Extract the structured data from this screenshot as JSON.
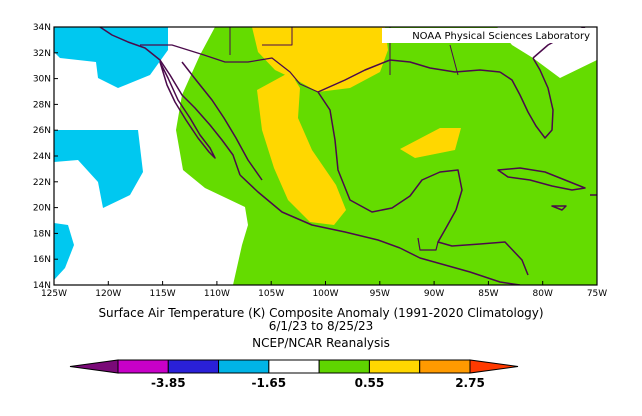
{
  "credit": "NOAA Physical Sciences Laboratory",
  "title": {
    "line1": "Surface Air Temperature (K) Composite Anomaly (1991-2020 Climatology)",
    "line2": "6/1/23   to 8/25/23",
    "line3": "NCEP/NCAR Reanalysis"
  },
  "axes": {
    "lon_ticks": [
      "125W",
      "120W",
      "115W",
      "110W",
      "105W",
      "100W",
      "95W",
      "90W",
      "85W",
      "80W",
      "75W"
    ],
    "lat_ticks": [
      "14N",
      "16N",
      "18N",
      "20N",
      "22N",
      "24N",
      "26N",
      "28N",
      "30N",
      "32N",
      "34N"
    ],
    "lon_range": [
      -125,
      -75
    ],
    "lat_range": [
      14,
      34
    ]
  },
  "colorbar": {
    "labels": [
      "-3.85",
      "-1.65",
      "0.55",
      "2.75"
    ],
    "colors": [
      "#7a0a78",
      "#c800c8",
      "#2a20d8",
      "#00b4e6",
      "#ffffff",
      "#5fd500",
      "#ffd700",
      "#ff9a00",
      "#ff3a00"
    ]
  },
  "colors": {
    "cyan": "#00c8f0",
    "green": "#64dc00",
    "yellow": "#ffd700",
    "white": "#ffffff",
    "coast": "#4b0a4b"
  }
}
